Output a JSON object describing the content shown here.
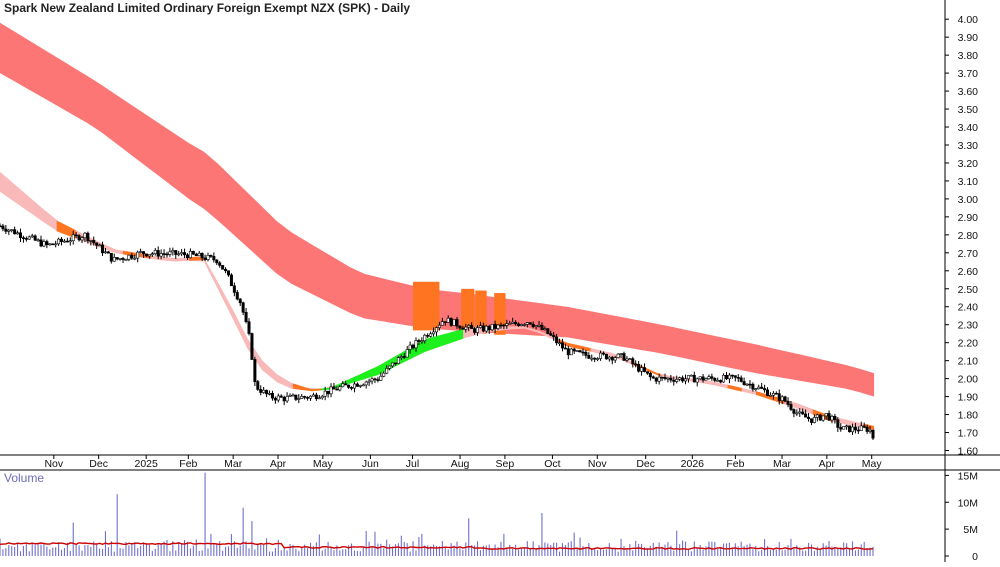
{
  "title": "Spark New Zealand Limited Ordinary Foreign Exempt NZX (SPK) - Daily",
  "chart_data": [
    {
      "type": "candlestick",
      "title": "Spark New Zealand Limited Ordinary Foreign Exempt NZX (SPK) - Daily",
      "ylim": [
        1.6,
        4.05
      ],
      "y_ticks": [
        "4.00",
        "3.90",
        "3.80",
        "3.70",
        "3.60",
        "3.50",
        "3.40",
        "3.30",
        "3.20",
        "3.10",
        "3.00",
        "2.90",
        "2.80",
        "2.70",
        "2.60",
        "2.50",
        "2.40",
        "2.30",
        "2.20",
        "2.10",
        "2.00",
        "1.90",
        "1.80",
        "1.70",
        "1.60"
      ],
      "x_tick_labels": [
        "Nov",
        "Dec",
        "2025",
        "Feb",
        "Mar",
        "Apr",
        "May",
        "Jun",
        "Jul",
        "Aug",
        "Sep",
        "Oct",
        "Nov",
        "Dec",
        "2026",
        "Feb",
        "Mar",
        "Apr",
        "May"
      ],
      "price_path": [
        [
          0,
          2.85
        ],
        [
          0.05,
          2.74
        ],
        [
          0.09,
          2.8
        ],
        [
          0.12,
          2.66
        ],
        [
          0.15,
          2.7
        ],
        [
          0.2,
          2.69
        ],
        [
          0.23,
          2.66
        ],
        [
          0.24,
          2.58
        ],
        [
          0.255,
          2.42
        ],
        [
          0.265,
          2.2
        ],
        [
          0.27,
          1.96
        ],
        [
          0.285,
          1.9
        ],
        [
          0.3,
          1.89
        ],
        [
          0.33,
          1.9
        ],
        [
          0.36,
          1.95
        ],
        [
          0.4,
          2.0
        ],
        [
          0.43,
          2.15
        ],
        [
          0.47,
          2.33
        ],
        [
          0.5,
          2.27
        ],
        [
          0.53,
          2.29
        ],
        [
          0.56,
          2.32
        ],
        [
          0.58,
          2.25
        ],
        [
          0.6,
          2.15
        ],
        [
          0.62,
          2.13
        ],
        [
          0.66,
          2.12
        ],
        [
          0.69,
          2.0
        ],
        [
          0.72,
          2.0
        ],
        [
          0.75,
          2.0
        ],
        [
          0.78,
          2.0
        ],
        [
          0.81,
          1.93
        ],
        [
          0.83,
          1.88
        ],
        [
          0.845,
          1.8
        ],
        [
          0.86,
          1.77
        ],
        [
          0.875,
          1.8
        ],
        [
          0.89,
          1.72
        ],
        [
          0.91,
          1.72
        ],
        [
          0.92,
          1.72
        ],
        [
          0.925,
          1.66
        ]
      ],
      "short_band": {
        "fast": [
          [
            0,
            3.15
          ],
          [
            0.06,
            2.88
          ],
          [
            0.12,
            2.72
          ],
          [
            0.18,
            2.67
          ],
          [
            0.215,
            2.68
          ],
          [
            0.24,
            2.45
          ],
          [
            0.27,
            2.14
          ],
          [
            0.3,
            1.99
          ],
          [
            0.33,
            1.94
          ],
          [
            0.35,
            1.95
          ],
          [
            0.4,
            2.07
          ],
          [
            0.45,
            2.22
          ],
          [
            0.5,
            2.29
          ],
          [
            0.53,
            2.29
          ],
          [
            0.56,
            2.29
          ],
          [
            0.6,
            2.2
          ],
          [
            0.65,
            2.14
          ],
          [
            0.7,
            2.02
          ],
          [
            0.75,
            1.99
          ],
          [
            0.8,
            1.93
          ],
          [
            0.84,
            1.87
          ],
          [
            0.88,
            1.79
          ],
          [
            0.93,
            1.73
          ]
        ],
        "slow": [
          [
            0,
            3.04
          ],
          [
            0.06,
            2.82
          ],
          [
            0.12,
            2.7
          ],
          [
            0.18,
            2.65
          ],
          [
            0.215,
            2.66
          ],
          [
            0.24,
            2.4
          ],
          [
            0.27,
            2.08
          ],
          [
            0.3,
            1.95
          ],
          [
            0.33,
            1.93
          ],
          [
            0.35,
            1.94
          ],
          [
            0.4,
            2.02
          ],
          [
            0.45,
            2.15
          ],
          [
            0.5,
            2.24
          ],
          [
            0.53,
            2.27
          ],
          [
            0.56,
            2.28
          ],
          [
            0.6,
            2.18
          ],
          [
            0.65,
            2.12
          ],
          [
            0.7,
            2.01
          ],
          [
            0.75,
            1.97
          ],
          [
            0.8,
            1.91
          ],
          [
            0.84,
            1.84
          ],
          [
            0.88,
            1.76
          ],
          [
            0.93,
            1.71
          ]
        ],
        "bull_segments": [
          [
            0.325,
            0.49
          ]
        ],
        "orange_segments": [
          [
            0.06,
            0.08
          ],
          [
            0.13,
            0.16
          ],
          [
            0.2,
            0.215
          ],
          [
            0.31,
            0.34
          ],
          [
            0.59,
            0.625
          ],
          [
            0.67,
            0.7
          ],
          [
            0.77,
            0.785
          ],
          [
            0.8,
            0.83
          ],
          [
            0.86,
            0.88
          ],
          [
            0.915,
            0.925
          ]
        ]
      },
      "long_band": {
        "fast": [
          [
            0,
            3.98
          ],
          [
            0.1,
            3.66
          ],
          [
            0.2,
            3.31
          ],
          [
            0.22,
            3.25
          ],
          [
            0.3,
            2.84
          ],
          [
            0.38,
            2.59
          ],
          [
            0.45,
            2.5
          ],
          [
            0.5,
            2.47
          ],
          [
            0.6,
            2.4
          ],
          [
            0.7,
            2.3
          ],
          [
            0.8,
            2.19
          ],
          [
            0.9,
            2.07
          ],
          [
            0.925,
            2.03
          ]
        ],
        "slow": [
          [
            0,
            3.7
          ],
          [
            0.1,
            3.4
          ],
          [
            0.2,
            3.0
          ],
          [
            0.22,
            2.93
          ],
          [
            0.3,
            2.55
          ],
          [
            0.38,
            2.34
          ],
          [
            0.45,
            2.28
          ],
          [
            0.5,
            2.26
          ],
          [
            0.6,
            2.23
          ],
          [
            0.7,
            2.14
          ],
          [
            0.8,
            2.03
          ],
          [
            0.9,
            1.94
          ],
          [
            0.925,
            1.9
          ]
        ],
        "orange_segments": [
          [
            0.437,
            0.465
          ],
          [
            0.488,
            0.502
          ],
          [
            0.503,
            0.515
          ],
          [
            0.523,
            0.535
          ]
        ]
      },
      "colors": {
        "long_band": "#fd7676",
        "short_band": "#f9b9b9",
        "bull": "#1ef01e",
        "signal": "#ff7420"
      }
    },
    {
      "type": "bar",
      "name": "Volume",
      "ylim": [
        0,
        16000000
      ],
      "y_ticks": [
        "15M",
        "10M",
        "5M",
        "0"
      ],
      "average_line_color": "#cc0000",
      "bar_color": "#7070cc"
    }
  ]
}
